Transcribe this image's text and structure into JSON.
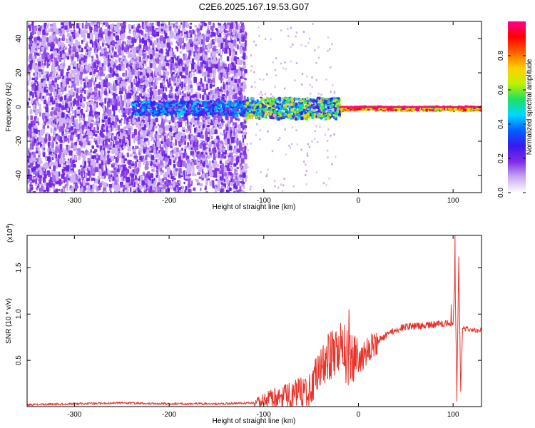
{
  "figure": {
    "title": "C2E6.2025.167.19.53.G07"
  },
  "chart_data": [
    {
      "type": "heatmap",
      "xlabel": "Height of straight line (km)",
      "ylabel": "Frequency (Hz)",
      "xlim": [
        -350,
        130
      ],
      "ylim": [
        -50,
        50
      ],
      "xticks": [
        -300,
        -200,
        -100,
        0,
        100
      ],
      "xtick_labels": [
        "-300",
        "-200",
        "-100",
        "0",
        "100"
      ],
      "yticks": [
        -40,
        -20,
        0,
        20,
        40
      ],
      "ytick_labels": [
        "-40",
        "-20",
        "0",
        "20",
        "40"
      ],
      "colorbar": {
        "label": "Normalized spectral amplitude",
        "range": [
          0,
          1
        ],
        "ticks": [
          0,
          0.2,
          0.4,
          0.6,
          0.8
        ],
        "tick_labels": [
          "0.0",
          "0.2",
          "0.4",
          "0.6",
          "0.8"
        ],
        "colormap": [
          "#ffffff",
          "#c9a8f0",
          "#7e2be8",
          "#3a18f0",
          "#0060ff",
          "#00d8ff",
          "#20e060",
          "#c0f000",
          "#ffd000",
          "#ff6000",
          "#ff0000",
          "#ff0090"
        ]
      },
      "regions": [
        {
          "name": "noise-scatter",
          "x": [
            -350,
            -120
          ],
          "y": [
            -50,
            50
          ],
          "level": 0.15
        },
        {
          "name": "weak-signal",
          "x": [
            -240,
            -120
          ],
          "y": [
            -4,
            4
          ],
          "level": 0.35
        },
        {
          "name": "strong-signal-onset",
          "x": [
            -120,
            -20
          ],
          "y": [
            -6,
            6
          ],
          "level": 0.45
        },
        {
          "name": "strong-signal",
          "x": [
            -20,
            130
          ],
          "y": [
            -1,
            1
          ],
          "level": 0.9
        }
      ]
    },
    {
      "type": "line",
      "xlabel": "Height of straight line (km)",
      "ylabel": "SNR (10 * v/v)",
      "y_multiplier_label": "(x10",
      "y_multiplier_exp": "4",
      "y_multiplier_close": ")",
      "xlim": [
        -350,
        130
      ],
      "ylim": [
        0,
        1.85
      ],
      "xticks": [
        -300,
        -200,
        -100,
        0,
        100
      ],
      "xtick_labels": [
        "-300",
        "-200",
        "-100",
        "0",
        "100"
      ],
      "yticks": [
        0.5,
        1.0,
        1.5
      ],
      "ytick_labels": [
        "0.5",
        "1.0",
        "1.5"
      ],
      "color": "#e8332a",
      "series": [
        {
          "x": [
            -350,
            -300,
            -250,
            -200,
            -150,
            -110,
            -100,
            -90,
            -80,
            -70,
            -60,
            -50,
            -45,
            -40,
            -35,
            -30,
            -25,
            -20,
            -15,
            -10,
            -5,
            0,
            10,
            20,
            30,
            40,
            50,
            60,
            70,
            80,
            90,
            95,
            100,
            102,
            104,
            106,
            108,
            110,
            120,
            130
          ],
          "values": [
            0.02,
            0.03,
            0.04,
            0.03,
            0.03,
            0.04,
            0.06,
            0.09,
            0.11,
            0.13,
            0.16,
            0.22,
            0.3,
            0.4,
            0.47,
            0.55,
            0.6,
            0.62,
            0.58,
            0.52,
            0.48,
            0.5,
            0.6,
            0.7,
            0.78,
            0.83,
            0.86,
            0.87,
            0.88,
            0.89,
            0.9,
            0.9,
            0.9,
            1.4,
            0.2,
            1.6,
            0.15,
            0.84,
            0.83,
            0.82
          ]
        }
      ],
      "spikes": [
        {
          "x": -10,
          "y": 1.05
        },
        {
          "x": -15,
          "y": 0.88
        },
        {
          "x": -45,
          "y": 0.52
        },
        {
          "x": 98,
          "y": 1.1
        },
        {
          "x": 102,
          "y": 1.85
        },
        {
          "x": 104,
          "y": 0.06
        },
        {
          "x": 106,
          "y": 1.62
        }
      ]
    }
  ]
}
